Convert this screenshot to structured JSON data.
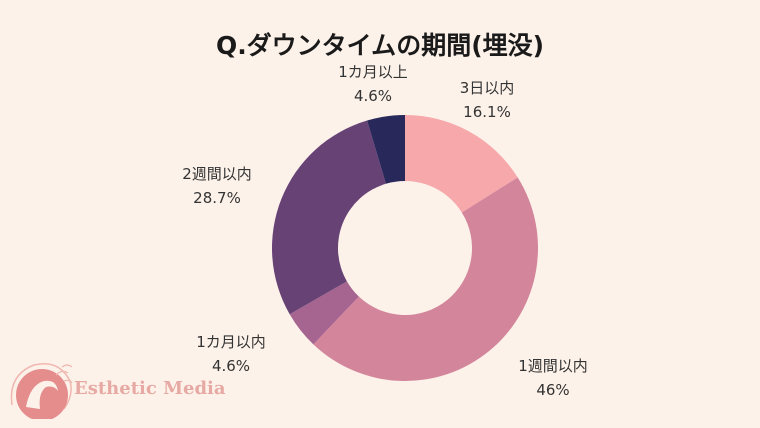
{
  "title": "Q.ダウンタイムの期間(埋没)",
  "chart_data": {
    "type": "pie",
    "variant": "donut",
    "title": "Q.ダウンタイムの期間(埋没)",
    "categories": [
      "3日以内",
      "1週間以内",
      "1カ月以内",
      "2週間以内",
      "1カ月以上"
    ],
    "values": [
      16.1,
      46,
      4.6,
      28.7,
      4.6
    ],
    "value_labels": [
      "16.1%",
      "46%",
      "4.6%",
      "28.7%",
      "4.6%"
    ],
    "colors": [
      "#f7a8aa",
      "#d3859b",
      "#a56590",
      "#674275",
      "#29285a"
    ]
  },
  "logo": {
    "text": "Esthetic Media"
  }
}
